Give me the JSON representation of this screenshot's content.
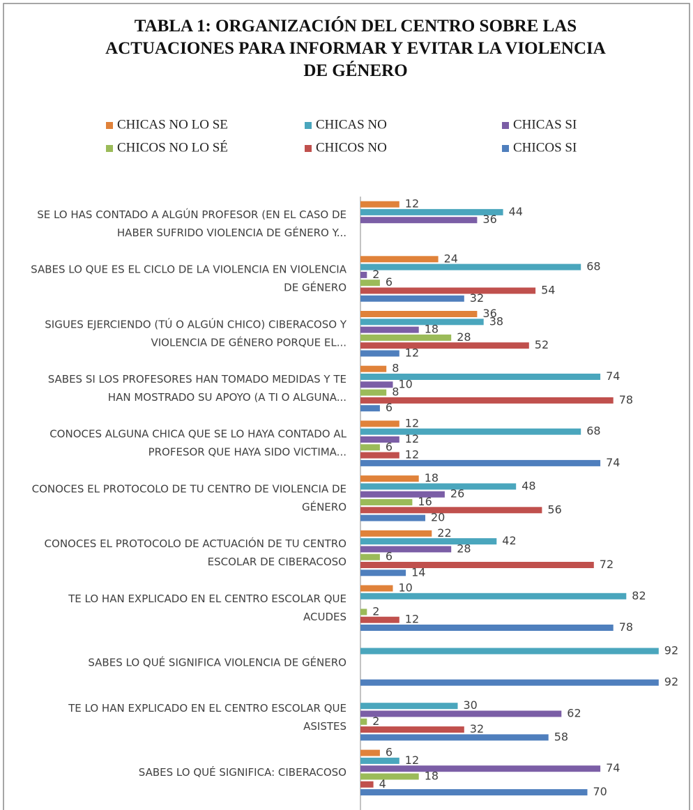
{
  "chart_data": {
    "type": "bar",
    "orientation": "horizontal",
    "title": "TABLA 1: ORGANIZACIÓN DEL CENTRO SOBRE LAS ACTUACIONES PARA INFORMAR Y EVITAR LA VIOLENCIA DE GÉNERO",
    "categories": [
      "SE LO HAS CONTADO A ALGÚN PROFESOR (EN EL CASO DE HABER SUFRIDO VIOLENCIA DE GÉNERO Y...",
      "SABES LO QUE ES EL CICLO DE LA VIOLENCIA EN VIOLENCIA DE GÉNERO",
      "SIGUES EJERCIENDO (TÚ O ALGÚN CHICO) CIBERACOSO Y VIOLENCIA DE GÉNERO PORQUE EL...",
      "SABES SI LOS PROFESORES HAN TOMADO MEDIDAS Y TE HAN MOSTRADO SU APOYO (A TI O ALGUNA...",
      "CONOCES ALGUNA CHICA QUE SE LO HAYA CONTADO AL PROFESOR QUE HAYA SIDO VICTIMA...",
      "CONOCES EL PROTOCOLO DE TU CENTRO DE VIOLENCIA DE GÉNERO",
      "CONOCES EL PROTOCOLO DE ACTUACIÓN DE TU CENTRO ESCOLAR DE CIBERACOSO",
      "TE LO HAN EXPLICADO EN EL CENTRO ESCOLAR QUE ACUDES",
      "SABES LO QUÉ SIGNIFICA VIOLENCIA DE GÉNERO",
      "TE LO HAN EXPLICADO EN EL CENTRO ESCOLAR QUE ASISTES",
      "SABES LO QUÉ SIGNIFICA: CIBERACOSO"
    ],
    "series": [
      {
        "name": "CHICAS NO LO SE",
        "color": "#e0823a",
        "values": [
          12,
          24,
          36,
          8,
          12,
          18,
          22,
          10,
          null,
          null,
          6
        ]
      },
      {
        "name": "CHICAS NO",
        "color": "#4aa6bd",
        "values": [
          44,
          68,
          38,
          74,
          68,
          48,
          42,
          82,
          92,
          30,
          12
        ]
      },
      {
        "name": "CHICAS SI",
        "color": "#7b5ea6",
        "values": [
          36,
          2,
          18,
          10,
          12,
          26,
          28,
          null,
          null,
          62,
          74
        ]
      },
      {
        "name": "CHICOS NO LO SÉ",
        "color": "#9bbb59",
        "values": [
          null,
          6,
          28,
          8,
          6,
          16,
          6,
          2,
          null,
          2,
          18
        ]
      },
      {
        "name": "CHICOS NO",
        "color": "#c0504d",
        "values": [
          null,
          54,
          52,
          78,
          12,
          56,
          72,
          12,
          null,
          32,
          4
        ]
      },
      {
        "name": "CHICOS SI",
        "color": "#4f7fbd",
        "values": [
          null,
          32,
          12,
          6,
          74,
          20,
          14,
          78,
          92,
          58,
          70
        ]
      }
    ],
    "xlim": [
      0,
      100
    ]
  }
}
